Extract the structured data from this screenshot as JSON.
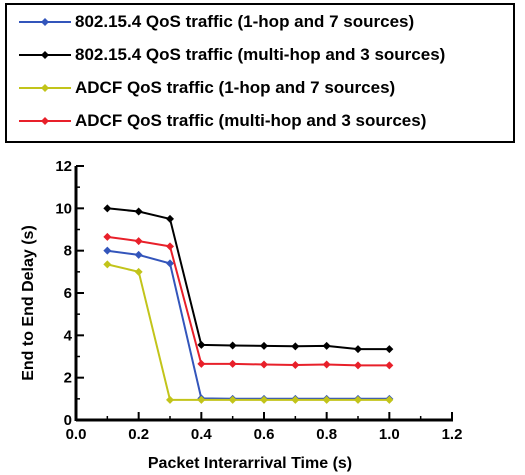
{
  "chart_data": {
    "type": "line",
    "xlabel": "Packet Interarrival Time (s)",
    "ylabel": "End to End Delay (s)",
    "xlim": [
      0.0,
      1.2
    ],
    "ylim": [
      0,
      12
    ],
    "xticks": [
      "0.0",
      "0.2",
      "0.4",
      "0.6",
      "0.8",
      "1.0",
      "1.2"
    ],
    "yticks": [
      "0",
      "2",
      "4",
      "6",
      "8",
      "10",
      "12"
    ],
    "x": [
      0.1,
      0.2,
      0.3,
      0.4,
      0.5,
      0.6,
      0.7,
      0.8,
      0.9,
      1.0
    ],
    "grid": false,
    "legend_position": "top",
    "series": [
      {
        "name": "802.15.4 QoS traffic (1-hop and 7 sources)",
        "color": "#3355bb",
        "values": [
          8.0,
          7.8,
          7.4,
          1.02,
          1.0,
          1.0,
          1.0,
          1.0,
          1.0,
          1.0
        ]
      },
      {
        "name": "802.15.4 QoS traffic (multi-hop and 3 sources)",
        "color": "#000000",
        "values": [
          10.0,
          9.85,
          9.5,
          3.55,
          3.52,
          3.5,
          3.48,
          3.5,
          3.35,
          3.35
        ]
      },
      {
        "name": "ADCF QoS traffic (1-hop and 7 sources)",
        "color": "#c2c41a",
        "values": [
          7.35,
          7.0,
          0.95,
          0.95,
          0.95,
          0.95,
          0.95,
          0.95,
          0.95,
          0.95
        ]
      },
      {
        "name": "ADCF QoS traffic (multi-hop and 3 sources)",
        "color": "#e8202a",
        "values": [
          8.65,
          8.45,
          8.2,
          2.65,
          2.65,
          2.62,
          2.6,
          2.62,
          2.58,
          2.58
        ]
      }
    ]
  }
}
